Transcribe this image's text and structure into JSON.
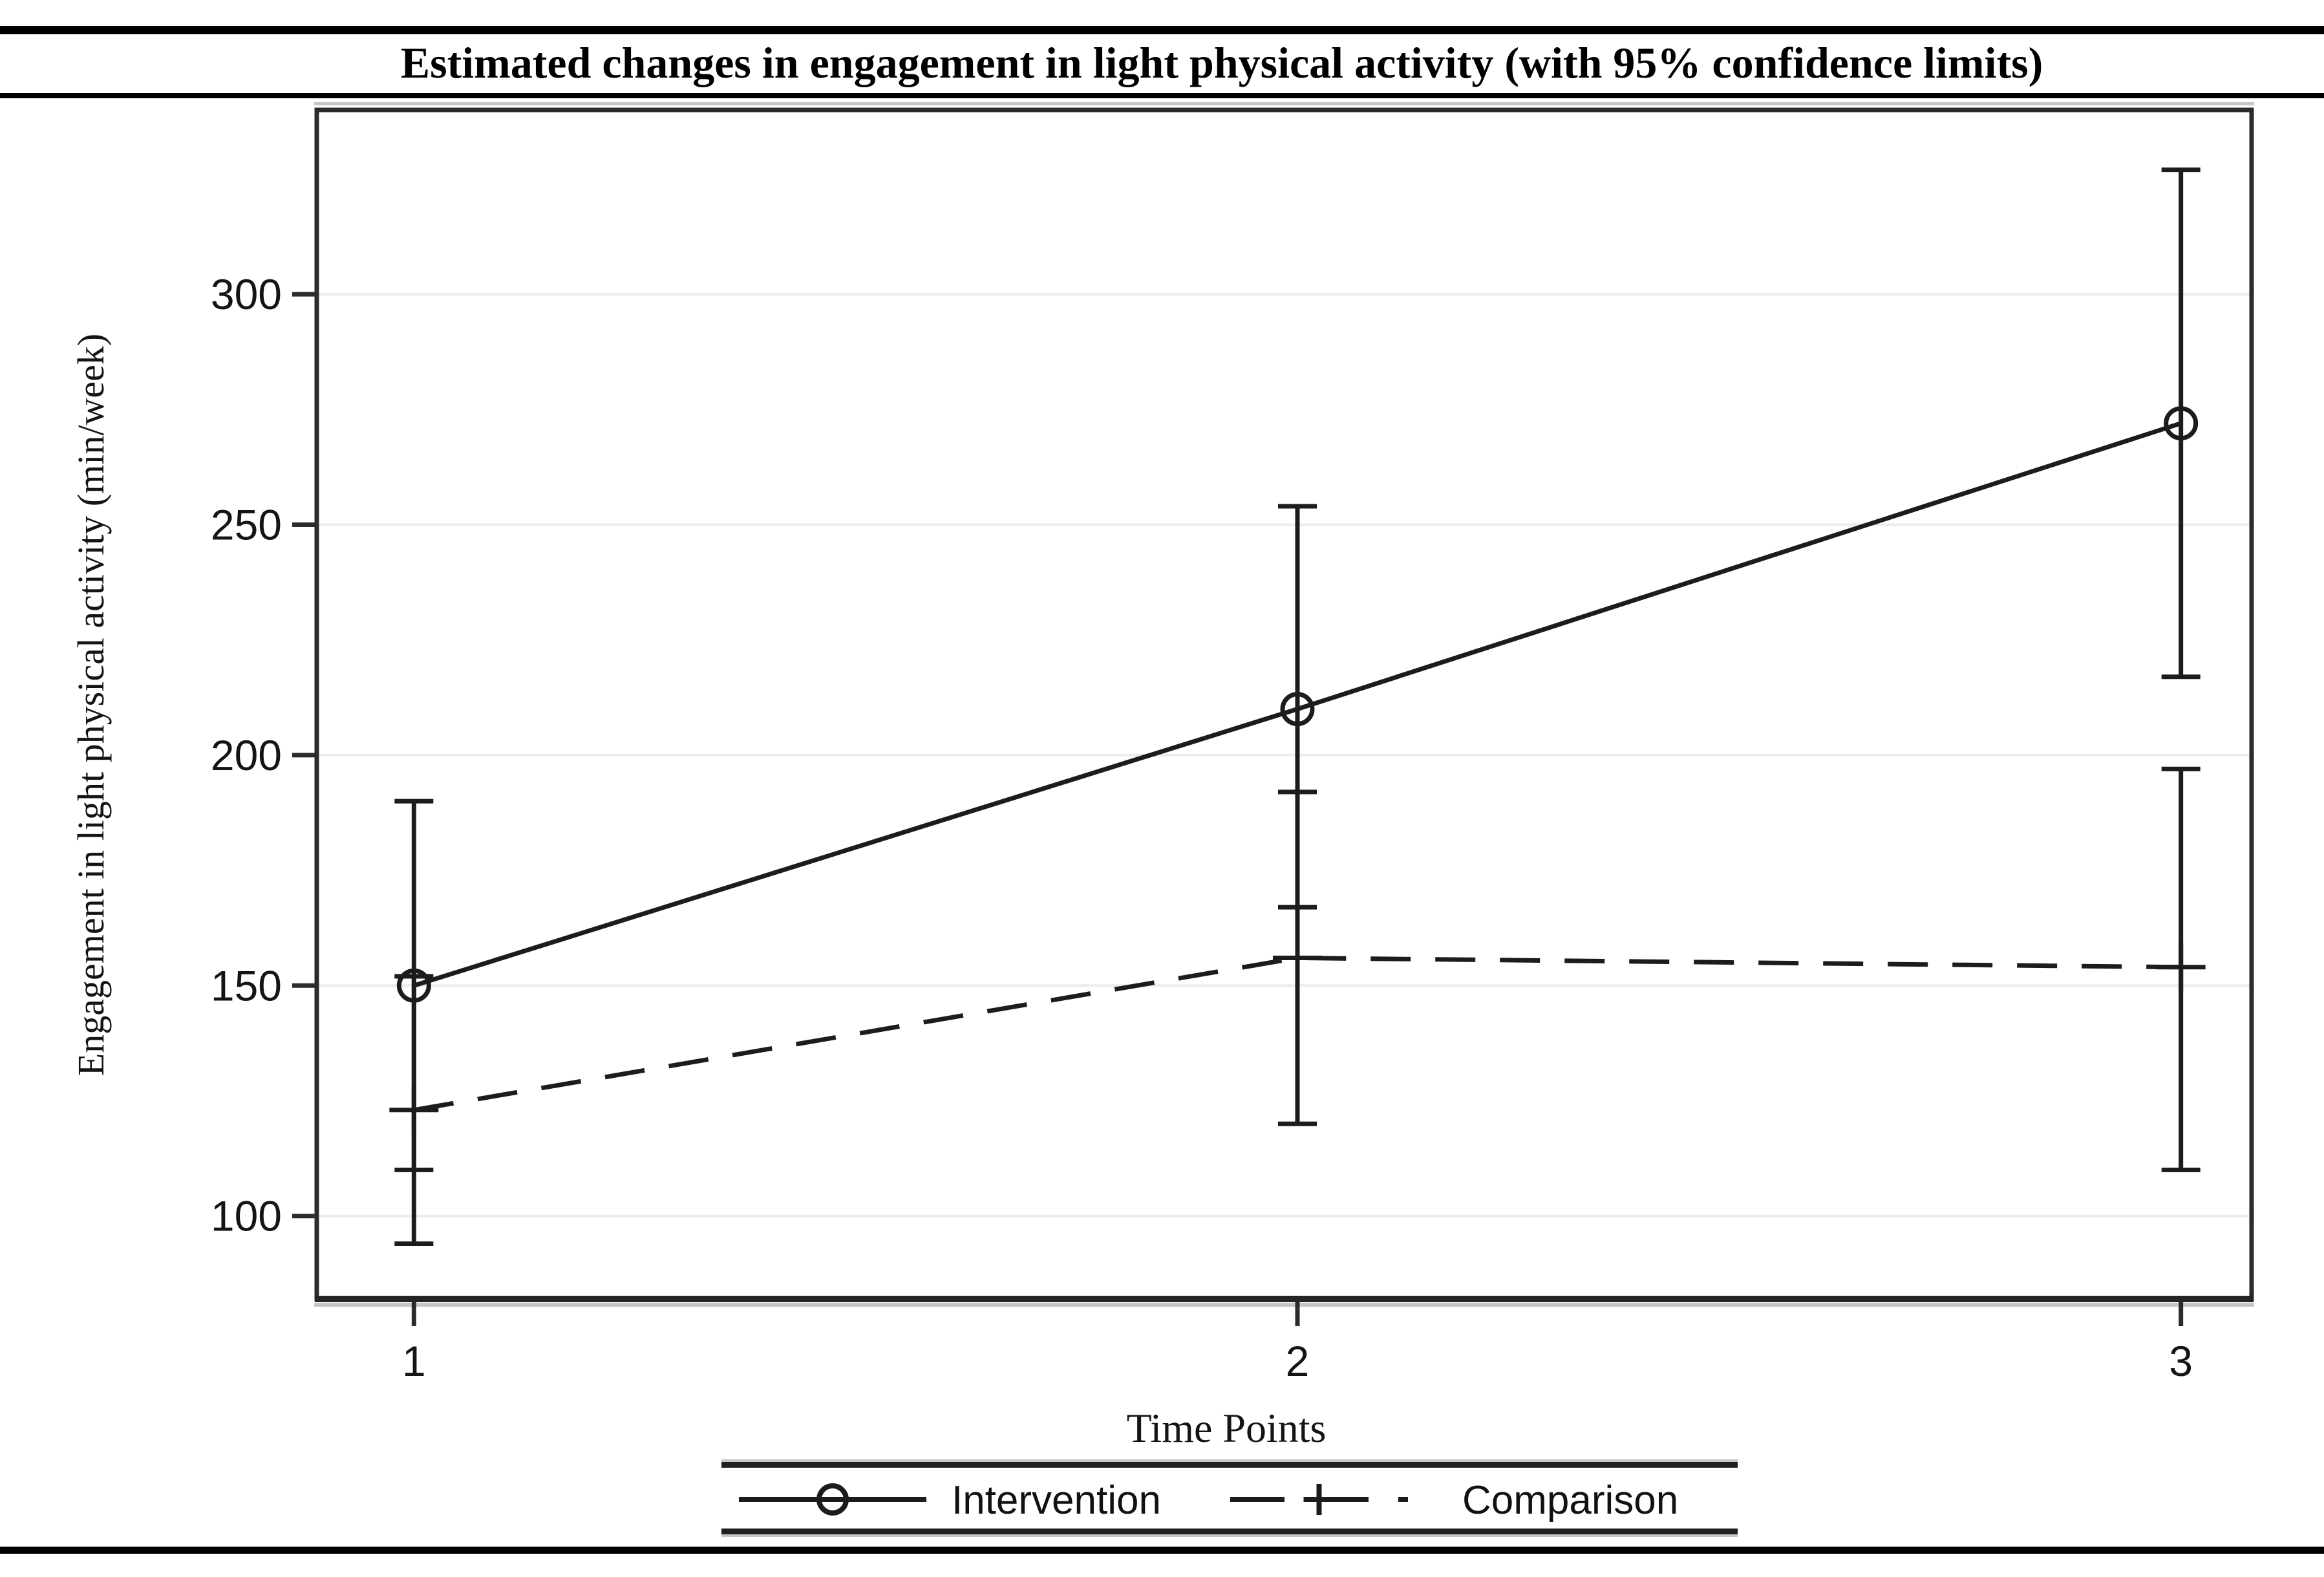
{
  "colors": {
    "line": "#1c1c1c",
    "frame": "#2b2b2b",
    "grid": "#ececec",
    "text": "#141414",
    "rule": "#000000",
    "shadow": "#c6c6c6",
    "background": "#ffffff"
  },
  "chart_data": {
    "type": "line",
    "title": "Estimated changes in engagement in light physical activity (with 95% confidence limits)",
    "xlabel": "Time Points",
    "ylabel": "Engagement in light physical activity (min/week)",
    "x": [
      1,
      2,
      3
    ],
    "x_tick_labels": [
      "1",
      "2",
      "3"
    ],
    "y_ticks": [
      100,
      150,
      200,
      250,
      300
    ],
    "ylim": [
      82,
      340
    ],
    "xlim": [
      0.89,
      3.08
    ],
    "grid": "horizontal-only",
    "legend_position": "bottom",
    "error_bars": "95% confidence limits",
    "series": [
      {
        "name": "Intervention",
        "line_style": "solid",
        "marker": "circle",
        "values": [
          150,
          210,
          272
        ],
        "ci_lower": [
          110,
          167,
          217
        ],
        "ci_upper": [
          190,
          254,
          327
        ]
      },
      {
        "name": "Comparison",
        "line_style": "dashed",
        "marker": "plus",
        "values": [
          123,
          156,
          154
        ],
        "ci_lower": [
          94,
          120,
          110
        ],
        "ci_upper": [
          152,
          192,
          197
        ]
      }
    ]
  }
}
